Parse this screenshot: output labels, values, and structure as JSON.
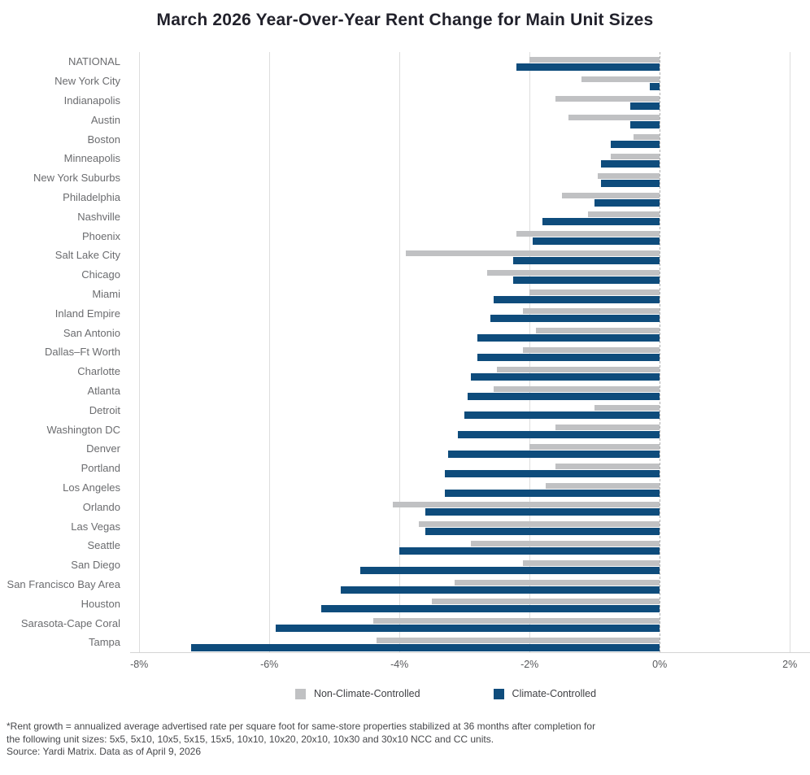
{
  "chart_data": {
    "type": "bar",
    "orientation": "horizontal",
    "title": "March 2026 Year-Over-Year Rent Change for Main Unit Sizes",
    "unit": "%",
    "categories": [
      "NATIONAL",
      "New York City",
      "Indianapolis",
      "Austin",
      "Boston",
      "Minneapolis",
      "New York Suburbs",
      "Philadelphia",
      "Nashville",
      "Phoenix",
      "Salt Lake City",
      "Chicago",
      "Miami",
      "Inland Empire",
      "San Antonio",
      "Dallas–Ft Worth",
      "Charlotte",
      "Atlanta",
      "Detroit",
      "Washington DC",
      "Denver",
      "Portland",
      "Los Angeles",
      "Orlando",
      "Las Vegas",
      "Seattle",
      "San Diego",
      "San Francisco Bay Area",
      "Houston",
      "Sarasota-Cape Coral",
      "Tampa"
    ],
    "series": [
      {
        "name": "Non-Climate-Controlled",
        "color": "#c0c1c3",
        "values": [
          -2.0,
          -1.2,
          -1.6,
          -1.4,
          -0.4,
          -0.75,
          -0.95,
          -1.5,
          -1.1,
          -2.2,
          -3.9,
          -2.65,
          -2.0,
          -2.1,
          -1.9,
          -2.1,
          -2.5,
          -2.55,
          -1.0,
          -1.6,
          -2.0,
          -1.6,
          -1.75,
          -4.1,
          -3.7,
          -2.9,
          -2.1,
          -3.15,
          -3.5,
          -4.4,
          -4.35
        ]
      },
      {
        "name": "Climate-Controlled",
        "color": "#0e4c7c",
        "values": [
          -2.2,
          -0.15,
          -0.45,
          -0.45,
          -0.75,
          -0.9,
          -0.9,
          -1.0,
          -1.8,
          -1.95,
          -2.25,
          -2.25,
          -2.55,
          -2.6,
          -2.8,
          -2.8,
          -2.9,
          -2.95,
          -3.0,
          -3.1,
          -3.25,
          -3.3,
          -3.3,
          -3.6,
          -3.6,
          -4.0,
          -4.6,
          -4.9,
          -5.2,
          -5.9,
          -7.2
        ]
      }
    ],
    "x_axis": {
      "min": -8.14,
      "max": 2.31,
      "tick_values": [
        -8,
        -6,
        -4,
        -2,
        0,
        2
      ],
      "tick_labels": [
        "-8%",
        "-6%",
        "-4%",
        "-2%",
        "0%",
        "2%"
      ]
    },
    "grid": "vertical",
    "zero_line_style": "dashed",
    "legend_position": "bottom"
  },
  "legend": {
    "items": [
      {
        "label": "Non-Climate-Controlled",
        "color": "#c0c1c3"
      },
      {
        "label": "Climate-Controlled",
        "color": "#0e4c7c"
      }
    ]
  },
  "footnote": {
    "line1": "*Rent growth = annualized average advertised rate per square foot for same-store properties stabilized at 36 months after completion for",
    "line2": "the following unit sizes: 5x5, 5x10, 10x5, 5x15, 15x5, 10x10, 10x20, 20x10, 10x30 and 30x10 NCC and CC units.",
    "source": "Source: Yardi Matrix. Data as of April 9, 2026"
  }
}
